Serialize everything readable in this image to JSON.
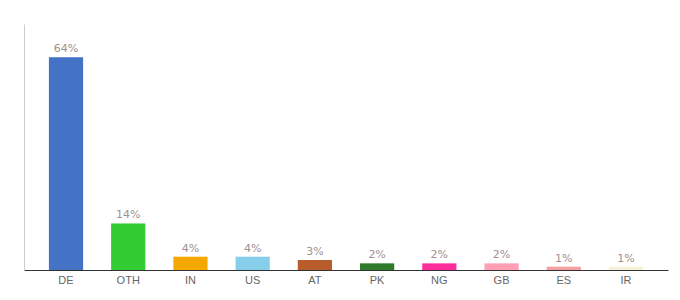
{
  "chart_data": {
    "type": "bar",
    "categories": [
      "DE",
      "OTH",
      "IN",
      "US",
      "AT",
      "PK",
      "NG",
      "GB",
      "ES",
      "IR"
    ],
    "values": [
      64,
      14,
      4,
      4,
      3,
      2,
      2,
      2,
      1,
      1
    ],
    "value_labels": [
      "64%",
      "14%",
      "4%",
      "4%",
      "3%",
      "2%",
      "2%",
      "2%",
      "1%",
      "1%"
    ],
    "colors": [
      "#4472c4",
      "#33cc33",
      "#f5a800",
      "#87ceeb",
      "#b85c2c",
      "#2d7a2d",
      "#ff2d9c",
      "#ff9eb5",
      "#f4a0a0",
      "#f5f0d8"
    ],
    "ylim": [
      0,
      74
    ],
    "data_labels": true,
    "tick_labels": "x"
  }
}
